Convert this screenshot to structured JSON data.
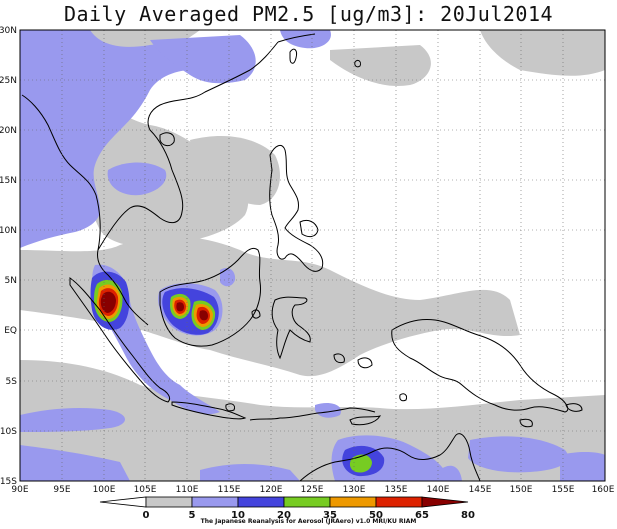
{
  "title": "Daily Averaged PM2.5 [ug/m3]: 20Jul2014",
  "credit": "The Japanese Reanalysis for Aerosol (JRAero) v1.0 MRI/KU RIAM",
  "map": {
    "lon_range": [
      90,
      160
    ],
    "lat_range": [
      -15,
      30
    ],
    "lon_ticks": [
      "90E",
      "95E",
      "100E",
      "105E",
      "110E",
      "115E",
      "120E",
      "125E",
      "130E",
      "135E",
      "140E",
      "145E",
      "150E",
      "155E",
      "160E"
    ],
    "lat_ticks": [
      "30N",
      "25N",
      "20N",
      "15N",
      "10N",
      "5N",
      "EQ",
      "5S",
      "10S",
      "15S"
    ],
    "gridlines": "dotted"
  },
  "colorbar": {
    "boundaries": [
      "0",
      "5",
      "10",
      "20",
      "35",
      "50",
      "65",
      "80"
    ],
    "colors": [
      "#ffffff",
      "#c8c8c8",
      "#9999ee",
      "#4444dd",
      "#77cc22",
      "#ee9900",
      "#dd2200",
      "#880000"
    ]
  }
}
